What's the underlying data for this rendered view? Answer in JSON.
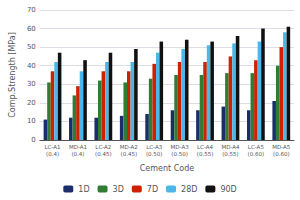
{
  "chart_data": {
    "type": "bar",
    "xlabel": "Cement Code",
    "ylabel": "Comp.Strength [MPa]",
    "categories": [
      "LC-A1\n(0.4)",
      "MD-A1\n(0.4)",
      "LC-A2\n(0.45)",
      "MD-A2\n(0.45)",
      "LC-A3\n(0.50)",
      "MD-A3\n(0.50)",
      "LC-A4\n(0.55)",
      "MD-A4\n(0.55)",
      "LC-A5\n(0.60)",
      "MD-A5\n(0.60)"
    ],
    "series": [
      {
        "name": "1D",
        "color": "#1b2e6b",
        "values": [
          11,
          12,
          12,
          13,
          14,
          16,
          16,
          18,
          16,
          21
        ]
      },
      {
        "name": "3D",
        "color": "#2e7d32",
        "values": [
          31,
          24,
          32,
          31,
          33,
          35,
          35,
          36,
          36,
          40
        ]
      },
      {
        "name": "7D",
        "color": "#cc2200",
        "values": [
          37,
          29,
          37,
          37,
          41,
          42,
          42,
          45,
          43,
          50
        ]
      },
      {
        "name": "28D",
        "color": "#4db6e8",
        "values": [
          42,
          37,
          42,
          42,
          47,
          49,
          51,
          52,
          53,
          58
        ]
      },
      {
        "name": "90D",
        "color": "#111111",
        "values": [
          47,
          43,
          47,
          49,
          53,
          54,
          53,
          56,
          60,
          61
        ]
      }
    ],
    "ylim": [
      0,
      70
    ],
    "yticks": [
      0,
      10,
      20,
      30,
      40,
      50,
      60,
      70
    ],
    "grid": true,
    "legend": "bottom"
  }
}
